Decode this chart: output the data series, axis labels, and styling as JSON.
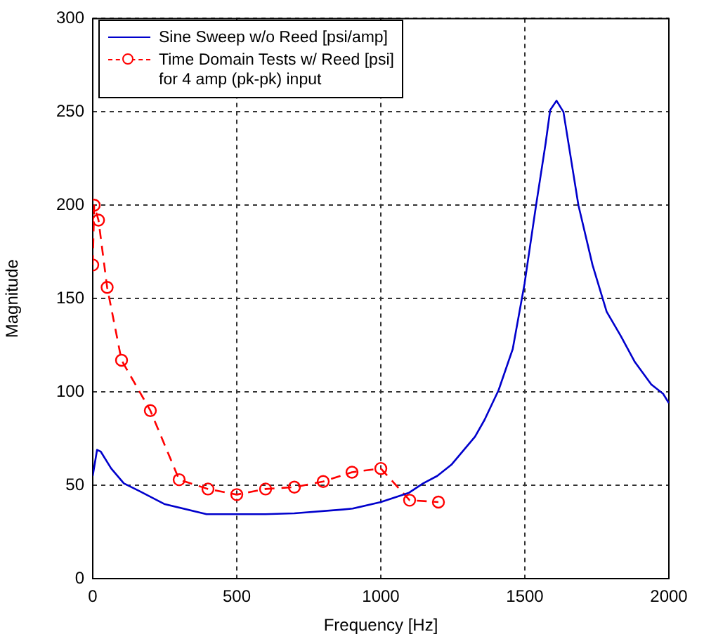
{
  "chart_data": {
    "type": "line",
    "xlabel": "Frequency [Hz]",
    "ylabel": "Magnitude",
    "xlim": [
      0,
      2000
    ],
    "xticks": [
      0,
      500,
      1000,
      1500,
      2000
    ],
    "ylim": [
      0,
      300
    ],
    "yticks": [
      0,
      50,
      100,
      150,
      200,
      250,
      300
    ],
    "grid": true,
    "legend": "top left",
    "series": [
      {
        "name": "Sine Sweep w/o Reed [psi/amp]",
        "color": "#0000cc",
        "marker": "none",
        "line_style": "solid",
        "x": [
          0,
          15,
          28,
          64,
          108,
          161,
          248,
          395,
          500,
          600,
          700,
          868,
          902,
          1000,
          1098,
          1147,
          1196,
          1245,
          1327,
          1360,
          1409,
          1458,
          1499,
          1539,
          1572,
          1588,
          1610,
          1634,
          1686,
          1735,
          1784,
          1833,
          1882,
          1939,
          1980,
          2000
        ],
        "values": [
          55,
          69,
          68,
          59,
          51,
          47,
          40,
          34.5,
          34.5,
          34.5,
          35,
          37,
          37.5,
          41,
          46,
          51,
          55,
          61,
          76,
          85,
          101,
          123,
          158,
          200,
          233,
          251,
          256,
          250,
          200,
          168,
          143,
          130,
          116,
          104,
          99,
          94
        ]
      },
      {
        "name": "Time Domain Tests w/ Reed [psi]\nfor 4 amp (pk-pk) input",
        "color": "#ff0000",
        "marker": "circle",
        "line_style": "dashed",
        "x": [
          0,
          5,
          20,
          50,
          100,
          200,
          300,
          400,
          500,
          600,
          700,
          800,
          900,
          1000,
          1100,
          1200
        ],
        "values": [
          168,
          200,
          192,
          156,
          117,
          90,
          53,
          48,
          45,
          48,
          49,
          52,
          57,
          59,
          42,
          41
        ]
      }
    ]
  }
}
